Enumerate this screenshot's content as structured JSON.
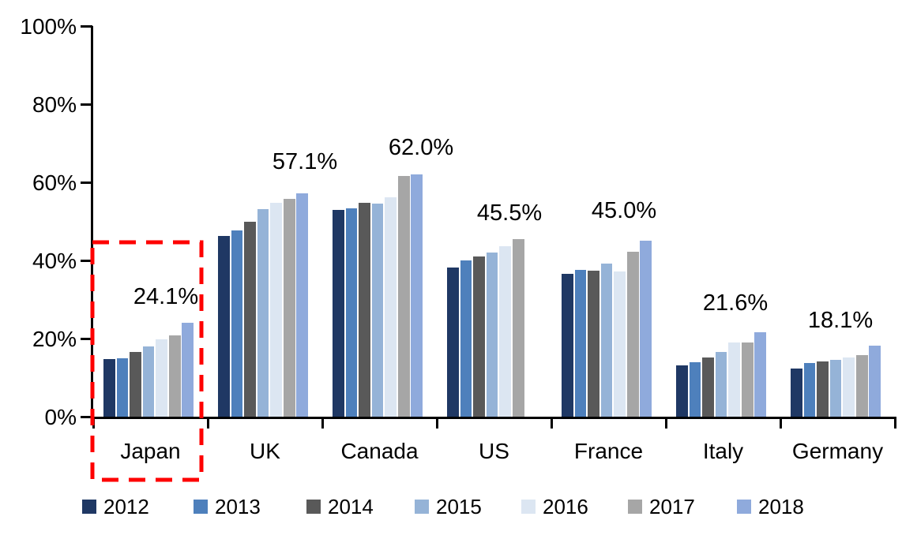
{
  "chart_data": {
    "type": "bar",
    "title": "",
    "xlabel": "",
    "ylabel": "",
    "categories": [
      "Japan",
      "UK",
      "Canada",
      "US",
      "France",
      "Italy",
      "Germany"
    ],
    "series": [
      {
        "name": "2012",
        "color": "#1F3864",
        "values": [
          14.8,
          46.3,
          53.0,
          38.2,
          36.5,
          13.1,
          12.3
        ]
      },
      {
        "name": "2013",
        "color": "#4E80BC",
        "values": [
          15.0,
          47.7,
          53.3,
          40.0,
          37.5,
          14.0,
          13.8
        ]
      },
      {
        "name": "2014",
        "color": "#595959",
        "values": [
          16.5,
          49.8,
          54.8,
          41.0,
          37.4,
          15.1,
          14.1
        ]
      },
      {
        "name": "2015",
        "color": "#95B3D7",
        "values": [
          17.9,
          53.1,
          54.5,
          42.1,
          39.1,
          16.6,
          14.5
        ]
      },
      {
        "name": "2016",
        "color": "#DCE6F2",
        "values": [
          19.7,
          54.8,
          56.1,
          43.6,
          37.2,
          18.9,
          15.1
        ]
      },
      {
        "name": "2017",
        "color": "#A6A6A6",
        "values": [
          20.9,
          55.8,
          61.6,
          45.5,
          42.2,
          19.0,
          15.7
        ]
      },
      {
        "name": "2018",
        "color": "#8FAADC",
        "values": [
          24.1,
          57.1,
          62.0,
          null,
          45.0,
          21.6,
          18.1
        ]
      }
    ],
    "data_labels": [
      {
        "category": "Japan",
        "text": "24.1%"
      },
      {
        "category": "UK",
        "text": "57.1%"
      },
      {
        "category": "Canada",
        "text": "62.0%"
      },
      {
        "category": "US",
        "text": "45.5%"
      },
      {
        "category": "France",
        "text": "45.0%"
      },
      {
        "category": "Italy",
        "text": "21.6%"
      },
      {
        "category": "Germany",
        "text": "18.1%"
      }
    ],
    "y_axis": {
      "min": 0,
      "max": 100,
      "tick_labels": [
        "0%",
        "20%",
        "40%",
        "60%",
        "80%",
        "100%"
      ]
    },
    "legend": {
      "position": "bottom",
      "entries": [
        "2012",
        "2013",
        "2014",
        "2015",
        "2016",
        "2017",
        "2018"
      ]
    },
    "highlight": {
      "category": "Japan",
      "style": "dashed-rectangle",
      "color": "#FE0000"
    },
    "grid": false,
    "axis_color": "#000000"
  }
}
